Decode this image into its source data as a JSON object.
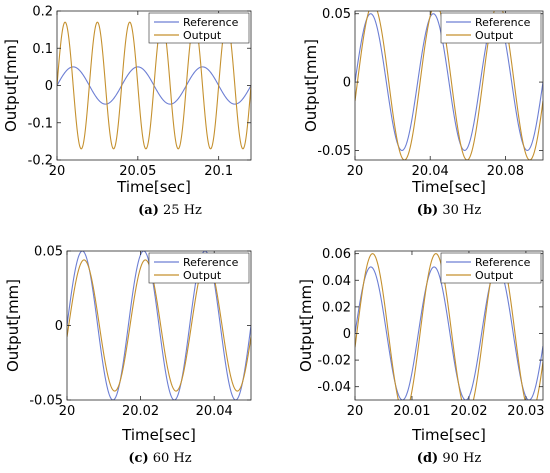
{
  "chart_data": [
    {
      "id": "a",
      "type": "line",
      "caption_letter": "(a)",
      "caption_text": "25 Hz",
      "xlabel": "Time[sec]",
      "ylabel": "Output[mm]",
      "xlim": [
        20,
        20.12
      ],
      "ylim": [
        -0.2,
        0.2
      ],
      "xticks": [
        20,
        20.05,
        20.1
      ],
      "xtick_labels": [
        "20",
        "20.05",
        "20.1"
      ],
      "yticks": [
        -0.2,
        -0.1,
        0,
        0.1,
        0.2
      ],
      "ytick_labels": [
        "-0.2",
        "-0.1",
        "0",
        "0.1",
        "0.2"
      ],
      "grid": false,
      "legend_position": "top-right",
      "series": [
        {
          "name": "Reference",
          "color": "#6d7fd4",
          "kind": "sine",
          "amplitude": 0.05,
          "frequency_hz": 25,
          "phase_deg": 0,
          "x_start": 20,
          "x_end": 20.12
        },
        {
          "name": "Output",
          "color": "#c5912f",
          "kind": "sine",
          "amplitude": 0.17,
          "frequency_hz": 50,
          "phase_deg": 0,
          "x_start": 20,
          "x_end": 20.12
        }
      ]
    },
    {
      "id": "b",
      "type": "line",
      "caption_letter": "(b)",
      "caption_text": "30 Hz",
      "xlabel": "Time[sec]",
      "ylabel": "Output[mm]",
      "xlim": [
        20,
        20.1
      ],
      "ylim": [
        -0.057,
        0.052
      ],
      "xticks": [
        20,
        20.04,
        20.08
      ],
      "xtick_labels": [
        "20",
        "20.04",
        "20.08"
      ],
      "yticks": [
        -0.05,
        0,
        0.05
      ],
      "ytick_labels": [
        "-0.05",
        "0",
        "0.05"
      ],
      "grid": false,
      "legend_position": "top-right",
      "series": [
        {
          "name": "Reference",
          "color": "#6d7fd4",
          "kind": "sine",
          "amplitude": 0.05,
          "frequency_hz": 30,
          "phase_deg": 0,
          "x_start": 20,
          "x_end": 20.1
        },
        {
          "name": "Output",
          "color": "#c5912f",
          "kind": "sine",
          "amplitude": 0.057,
          "frequency_hz": 30,
          "phase_deg": -14,
          "x_start": 20,
          "x_end": 20.1
        }
      ]
    },
    {
      "id": "c",
      "type": "line",
      "caption_letter": "(c)",
      "caption_text": "60 Hz",
      "xlabel": "Time[sec]",
      "ylabel": "Output[mm]",
      "xlim": [
        20,
        20.05
      ],
      "ylim": [
        -0.05,
        0.05
      ],
      "xticks": [
        20,
        20.02,
        20.04
      ],
      "xtick_labels": [
        "20",
        "20.02",
        "20.04"
      ],
      "yticks": [
        -0.05,
        0,
        0.05
      ],
      "ytick_labels": [
        "-0.05",
        "0",
        "0.05"
      ],
      "grid": false,
      "legend_position": "top-right",
      "series": [
        {
          "name": "Reference",
          "color": "#6d7fd4",
          "kind": "sine",
          "amplitude": 0.05,
          "frequency_hz": 60,
          "phase_deg": 0,
          "x_start": 20,
          "x_end": 20.05
        },
        {
          "name": "Output",
          "color": "#c5912f",
          "kind": "sine",
          "amplitude": 0.044,
          "frequency_hz": 60,
          "phase_deg": -10,
          "x_start": 20,
          "x_end": 20.05
        }
      ]
    },
    {
      "id": "d",
      "type": "line",
      "caption_letter": "(d)",
      "caption_text": "90 Hz",
      "xlabel": "Time[sec]",
      "ylabel": "Output[mm]",
      "xlim": [
        20,
        20.033
      ],
      "ylim": [
        -0.05,
        0.062
      ],
      "xticks": [
        20,
        20.01,
        20.02,
        20.03
      ],
      "xtick_labels": [
        "20",
        "20.01",
        "20.02",
        "20.03"
      ],
      "yticks": [
        -0.04,
        -0.02,
        0,
        0.02,
        0.04,
        0.06
      ],
      "ytick_labels": [
        "-0.04",
        "-0.02",
        "0",
        "0.02",
        "0.04",
        "0.06"
      ],
      "grid": false,
      "legend_position": "top-right",
      "series": [
        {
          "name": "Reference",
          "color": "#6d7fd4",
          "kind": "sine",
          "amplitude": 0.05,
          "frequency_hz": 90,
          "phase_deg": 0,
          "x_start": 20,
          "x_end": 20.033
        },
        {
          "name": "Output",
          "color": "#c5912f",
          "kind": "sine",
          "amplitude": 0.06,
          "frequency_hz": 90,
          "phase_deg": -10,
          "x_start": 20,
          "x_end": 20.033
        }
      ]
    }
  ]
}
